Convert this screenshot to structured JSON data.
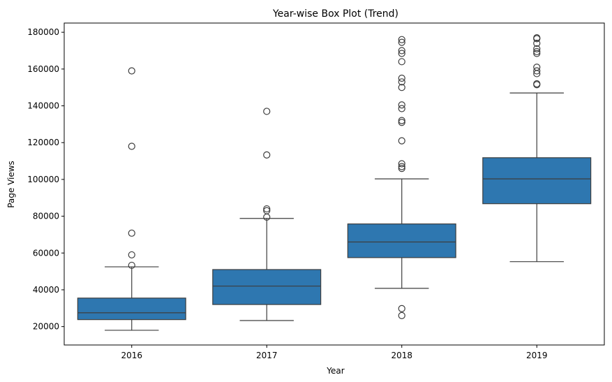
{
  "chart_data": {
    "type": "box",
    "title": "Year-wise Box Plot (Trend)",
    "xlabel": "Year",
    "ylabel": "Page Views",
    "ylim": [
      10000,
      185000
    ],
    "categories": [
      "2016",
      "2017",
      "2018",
      "2019"
    ],
    "yticks": [
      20000,
      40000,
      60000,
      80000,
      100000,
      120000,
      140000,
      160000,
      180000
    ],
    "ytick_labels": [
      "20000",
      "40000",
      "60000",
      "80000",
      "100000",
      "120000",
      "140000",
      "160000",
      "180000"
    ],
    "box_color": "#2e77b0",
    "line_color": "#3d3d3d",
    "boxes": [
      {
        "category": "2016",
        "whisker_low": 18000,
        "q1": 23800,
        "median": 27500,
        "q3": 35500,
        "whisker_high": 52500,
        "outliers": [
          53300,
          59000,
          70800,
          118000,
          159000
        ]
      },
      {
        "category": "2017",
        "whisker_low": 23300,
        "q1": 32000,
        "median": 42000,
        "q3": 51000,
        "whisker_high": 78800,
        "outliers": [
          79500,
          83000,
          84000,
          113300,
          137000
        ]
      },
      {
        "category": "2018",
        "whisker_low": 40800,
        "q1": 57500,
        "median": 66000,
        "q3": 75800,
        "whisker_high": 100300,
        "outliers": [
          26000,
          29800,
          106000,
          107000,
          108500,
          121000,
          131000,
          132000,
          138500,
          140500,
          150000,
          153000,
          155000,
          164000,
          168500,
          170000,
          174500,
          176000
        ]
      },
      {
        "category": "2019",
        "whisker_low": 55300,
        "q1": 86800,
        "median": 100300,
        "q3": 111800,
        "whisker_high": 147000,
        "outliers": [
          151500,
          152000,
          157500,
          159000,
          161000,
          168500,
          169500,
          171000,
          174000,
          176500,
          177000
        ]
      }
    ]
  }
}
